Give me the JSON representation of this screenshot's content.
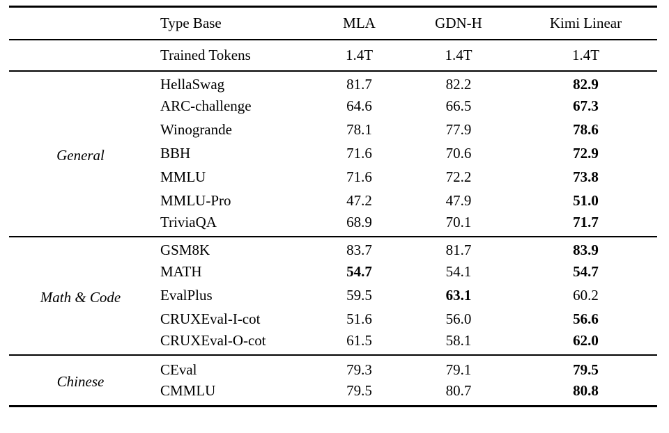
{
  "colors": {
    "background": "#ffffff",
    "text": "#000000",
    "rule": "#000000"
  },
  "table": {
    "header": {
      "group": "",
      "type_base": "Type Base",
      "cols": [
        "MLA",
        "GDN-H",
        "Kimi Linear"
      ]
    },
    "trained": {
      "label": "Trained Tokens",
      "values": [
        "1.4T",
        "1.4T",
        "1.4T"
      ]
    },
    "sections": [
      {
        "group": "General",
        "rows": [
          {
            "name": "HellaSwag",
            "scores": [
              "81.7",
              "82.2",
              "82.9"
            ],
            "bold_cols": [
              2
            ]
          },
          {
            "name": "ARC-challenge",
            "scores": [
              "64.6",
              "66.5",
              "67.3"
            ],
            "bold_cols": [
              2
            ]
          },
          {
            "name": "Winogrande",
            "scores": [
              "78.1",
              "77.9",
              "78.6"
            ],
            "bold_cols": [
              2
            ]
          },
          {
            "name": "BBH",
            "scores": [
              "71.6",
              "70.6",
              "72.9"
            ],
            "bold_cols": [
              2
            ]
          },
          {
            "name": "MMLU",
            "scores": [
              "71.6",
              "72.2",
              "73.8"
            ],
            "bold_cols": [
              2
            ]
          },
          {
            "name": "MMLU-Pro",
            "scores": [
              "47.2",
              "47.9",
              "51.0"
            ],
            "bold_cols": [
              2
            ]
          },
          {
            "name": "TriviaQA",
            "scores": [
              "68.9",
              "70.1",
              "71.7"
            ],
            "bold_cols": [
              2
            ]
          }
        ]
      },
      {
        "group": "Math & Code",
        "rows": [
          {
            "name": "GSM8K",
            "scores": [
              "83.7",
              "81.7",
              "83.9"
            ],
            "bold_cols": [
              2
            ]
          },
          {
            "name": "MATH",
            "scores": [
              "54.7",
              "54.1",
              "54.7"
            ],
            "bold_cols": [
              0,
              2
            ]
          },
          {
            "name": "EvalPlus",
            "scores": [
              "59.5",
              "63.1",
              "60.2"
            ],
            "bold_cols": [
              1
            ]
          },
          {
            "name": "CRUXEval-I-cot",
            "scores": [
              "51.6",
              "56.0",
              "56.6"
            ],
            "bold_cols": [
              2
            ]
          },
          {
            "name": "CRUXEval-O-cot",
            "scores": [
              "61.5",
              "58.1",
              "62.0"
            ],
            "bold_cols": [
              2
            ]
          }
        ]
      },
      {
        "group": "Chinese",
        "rows": [
          {
            "name": "CEval",
            "scores": [
              "79.3",
              "79.1",
              "79.5"
            ],
            "bold_cols": [
              2
            ]
          },
          {
            "name": "CMMLU",
            "scores": [
              "79.5",
              "80.7",
              "80.8"
            ],
            "bold_cols": [
              2
            ]
          }
        ]
      }
    ]
  }
}
